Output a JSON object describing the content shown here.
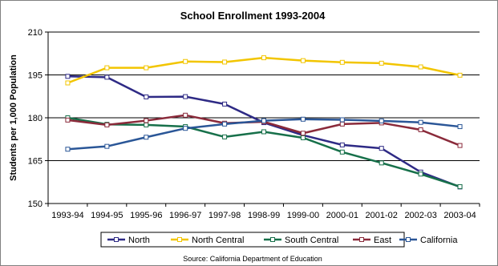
{
  "chart_data": {
    "type": "line",
    "title": "School Enrollment 1993-2004",
    "ylabel": "Students per 1,000 Population",
    "xlabel": "",
    "source": "Source: California Department of Education",
    "categories": [
      "1993-94",
      "1994-95",
      "1995-96",
      "1996-97",
      "1997-98",
      "1998-99",
      "1999-00",
      "2000-01",
      "2001-02",
      "2002-03",
      "2003-04"
    ],
    "ylim": [
      150,
      210
    ],
    "yticks": [
      150,
      165,
      180,
      195,
      210
    ],
    "grid": "horizontal major gridlines",
    "legend_position": "bottom",
    "series": [
      {
        "name": "North",
        "color": "#2e2a85",
        "values": [
          194.5,
          194.2,
          187.3,
          187.4,
          184.8,
          178.3,
          173.9,
          170.5,
          169.3,
          161.0,
          155.8
        ]
      },
      {
        "name": "North Central",
        "color": "#f2c500",
        "values": [
          192.2,
          197.5,
          197.5,
          199.7,
          199.5,
          201.0,
          200.0,
          199.4,
          199.1,
          197.8,
          194.9
        ]
      },
      {
        "name": "South Central",
        "color": "#17704a",
        "values": [
          180.0,
          177.7,
          177.5,
          176.9,
          173.3,
          175.1,
          173.0,
          168.0,
          164.2,
          160.3,
          155.9
        ]
      },
      {
        "name": "East",
        "color": "#8a2a3a",
        "values": [
          179.2,
          177.5,
          179.0,
          180.9,
          178.1,
          178.6,
          174.6,
          177.8,
          178.2,
          175.8,
          170.3
        ]
      },
      {
        "name": "California",
        "color": "#2a5697",
        "values": [
          169.0,
          170.0,
          173.2,
          176.3,
          177.8,
          179.0,
          179.5,
          179.3,
          178.9,
          178.4,
          176.9
        ]
      }
    ]
  }
}
